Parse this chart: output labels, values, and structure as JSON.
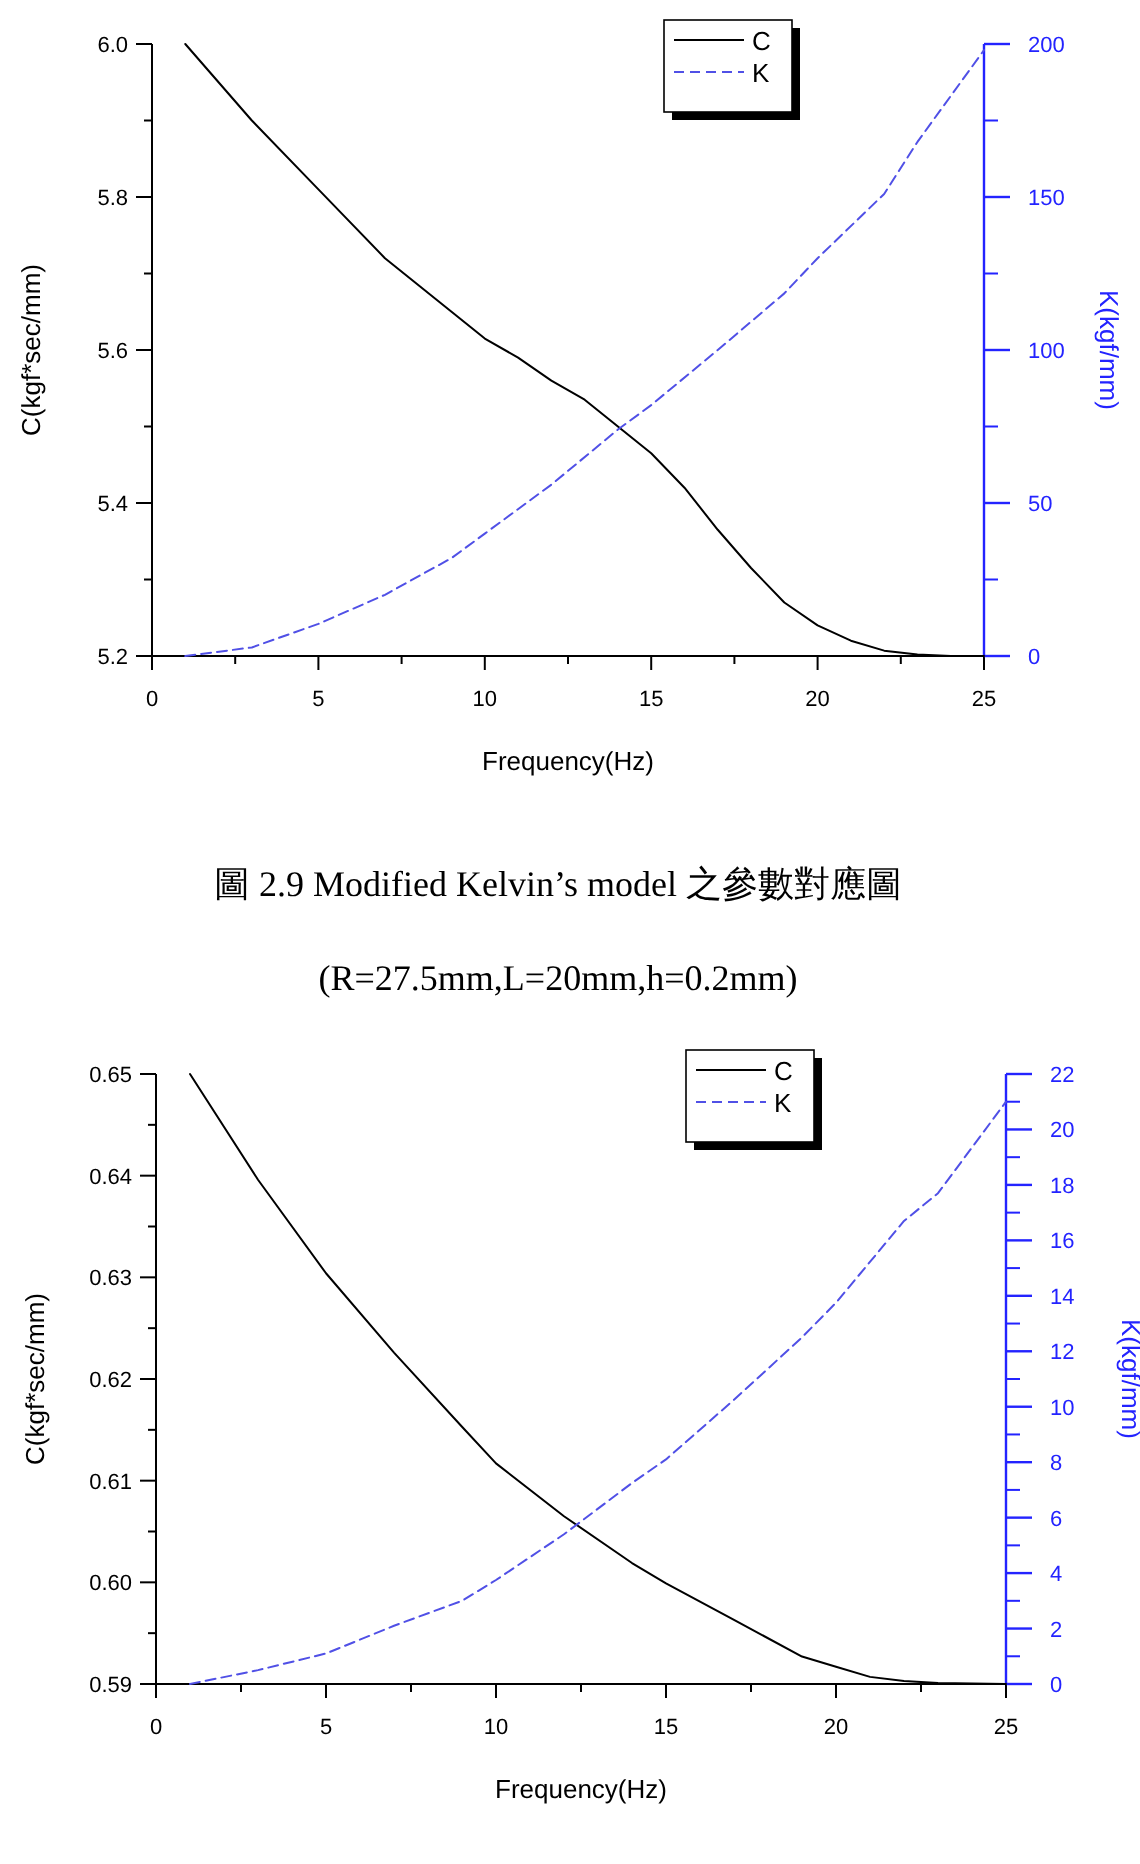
{
  "chart_data": [
    {
      "type": "line",
      "xlabel": "Frequency(Hz)",
      "ylabel": "C(kgf*sec/mm)",
      "y2label": "K(kgf/mm)",
      "xlim": [
        0,
        25
      ],
      "xticks": [
        0,
        5,
        10,
        15,
        20,
        25
      ],
      "ylim": [
        5.2,
        6.0
      ],
      "yticks": [
        5.2,
        5.4,
        5.6,
        5.8,
        {
          "value": 6,
          "label": "6.0"
        }
      ],
      "y2lim": [
        0,
        200
      ],
      "y2ticks": [
        0,
        50,
        100,
        150,
        200
      ],
      "legend": "top right",
      "annotations": [
        "圖 2.9 Modified Kelvin’s model 之參數對應圖",
        "(R=27.5mm,L=20mm,h=0.2mm)"
      ],
      "series": [
        {
          "name": "C",
          "color": "#000000",
          "line_style": "solid",
          "x": [
            1,
            3,
            5,
            7,
            9,
            10,
            11,
            12,
            13,
            14,
            15,
            16,
            17,
            18,
            19,
            20,
            21,
            22,
            23,
            24,
            25
          ],
          "values": [
            6.0,
            5.9,
            5.81,
            5.72,
            5.65,
            5.615,
            5.59,
            5.56,
            5.535,
            5.5,
            5.465,
            5.42,
            5.365,
            5.315,
            5.27,
            5.24,
            5.22,
            5.207,
            5.202,
            5.2,
            5.2
          ]
        },
        {
          "name": "K",
          "color": "#5050e6",
          "line_style": "dashed",
          "axis": "y2",
          "x": [
            1,
            3,
            5,
            7,
            9,
            10,
            12,
            14,
            15,
            17,
            19,
            20,
            22,
            23,
            24,
            25
          ],
          "values": [
            0,
            2.8,
            10.5,
            20,
            32,
            40,
            56,
            74,
            82,
            100,
            118.5,
            130,
            151,
            168,
            183,
            198
          ]
        }
      ]
    },
    {
      "type": "line",
      "xlabel": "Frequency(Hz)",
      "ylabel": "C(kgf*sec/mm)",
      "y2label": "K(kgf/mm)",
      "xlim": [
        0,
        25
      ],
      "xticks": [
        0,
        5,
        10,
        15,
        20,
        25
      ],
      "ylim": [
        0.59,
        0.65
      ],
      "yticks": [
        0.59,
        {
          "value": 0.6,
          "label": "0.60"
        },
        0.61,
        0.62,
        0.63,
        0.64,
        0.65
      ],
      "y2lim": [
        0,
        22
      ],
      "y2ticks": [
        0,
        2,
        4,
        6,
        8,
        10,
        12,
        14,
        16,
        18,
        20,
        22
      ],
      "legend": "top right",
      "series": [
        {
          "name": "C",
          "color": "#000000",
          "line_style": "solid",
          "x": [
            1,
            3,
            5,
            7,
            9,
            10,
            12,
            14,
            15,
            17,
            19,
            20,
            21,
            22,
            23,
            25
          ],
          "values": [
            0.65,
            0.6396,
            0.6304,
            0.6226,
            0.6153,
            0.6117,
            0.6065,
            0.6019,
            0.5999,
            0.5963,
            0.5927,
            0.5917,
            0.5907,
            0.5903,
            0.5901,
            0.59
          ]
        },
        {
          "name": "K",
          "color": "#5050e6",
          "line_style": "dashed",
          "axis": "y2",
          "x": [
            1,
            3,
            5,
            7,
            9,
            10,
            12,
            14,
            15,
            17,
            19,
            20,
            22,
            23,
            25
          ],
          "values": [
            0,
            0.5,
            1.1,
            2.1,
            3.0,
            3.75,
            5.4,
            7.25,
            8.1,
            10.25,
            12.5,
            13.75,
            16.7,
            17.7,
            21.0
          ]
        }
      ]
    }
  ]
}
